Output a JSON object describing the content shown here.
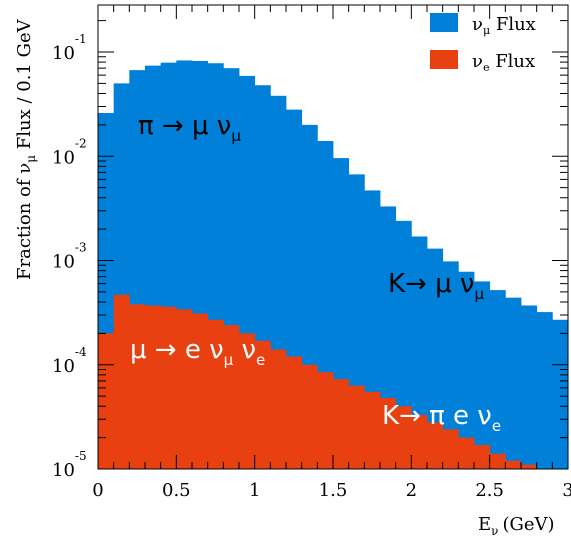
{
  "chart_data": {
    "type": "bar",
    "title": "",
    "xlabel": "E",
    "xlabel_sub": "ν",
    "xlabel_unit": "(GeV)",
    "ylabel_prefix": "Fraction of ν",
    "ylabel_sub": "μ",
    "ylabel_suffix": " Flux / 0.1 GeV",
    "xlim": [
      0,
      3
    ],
    "ylim": [
      1e-05,
      0.2
    ],
    "yscale": "log",
    "grid": false,
    "legend_position": "top-right",
    "x_ticks": [
      "0",
      "0.5",
      "1",
      "1.5",
      "2",
      "2.5",
      "3"
    ],
    "x_tick_values": [
      0,
      0.5,
      1,
      1.5,
      2,
      2.5,
      3
    ],
    "y_ticks": [
      {
        "base": "10",
        "exp": "-1",
        "value": 0.1
      },
      {
        "base": "10",
        "exp": "-2",
        "value": 0.01
      },
      {
        "base": "10",
        "exp": "-3",
        "value": 0.001
      },
      {
        "base": "10",
        "exp": "-4",
        "value": 0.0001
      },
      {
        "base": "10",
        "exp": "-5",
        "value": 1e-05
      }
    ],
    "bin_width": 0.1,
    "bin_lows": [
      0.0,
      0.1,
      0.2,
      0.3,
      0.4,
      0.5,
      0.6,
      0.7,
      0.8,
      0.9,
      1.0,
      1.1,
      1.2,
      1.3,
      1.4,
      1.5,
      1.6,
      1.7,
      1.8,
      1.9,
      2.0,
      2.1,
      2.2,
      2.3,
      2.4,
      2.5,
      2.6,
      2.7,
      2.8,
      2.9
    ],
    "series": [
      {
        "name": "ν_μ Flux",
        "label_main": "ν",
        "label_sub": "μ",
        "label_suffix": " Flux",
        "color": "#0080d8",
        "values": [
          0.026,
          0.05,
          0.067,
          0.074,
          0.079,
          0.083,
          0.082,
          0.078,
          0.07,
          0.059,
          0.048,
          0.038,
          0.028,
          0.02,
          0.014,
          0.0096,
          0.0067,
          0.0047,
          0.0033,
          0.0024,
          0.0017,
          0.0013,
          0.00098,
          0.00078,
          0.00063,
          0.00052,
          0.00044,
          0.00037,
          0.00032,
          0.00027
        ]
      },
      {
        "name": "ν_e Flux",
        "label_main": "ν",
        "label_sub": "e",
        "label_suffix": " Flux",
        "color": "#e84010",
        "values": [
          0.0002,
          0.00047,
          0.00038,
          0.00037,
          0.00036,
          0.00034,
          0.00031,
          0.00027,
          0.00024,
          0.0002,
          0.00017,
          0.00014,
          0.00012,
          0.0001,
          8.5e-05,
          7.3e-05,
          6.3e-05,
          5.5e-05,
          4.8e-05,
          4e-05,
          3.3e-05,
          2.8e-05,
          2.4e-05,
          2e-05,
          1.7e-05,
          1.4e-05,
          1.2e-05,
          1.1e-05,
          1e-05,
          1e-05
        ]
      }
    ],
    "annotations": [
      {
        "id": "pi-mu-nu",
        "main": "π → μ ν",
        "sub": "μ",
        "color": "#000000"
      },
      {
        "id": "k-mu-nu",
        "main": "K→ μ ν",
        "sub": "μ",
        "color": "#000000"
      },
      {
        "id": "mu-e-nu-nu",
        "main": "μ → e ν",
        "sub": "μ",
        "main2": " ν",
        "sub2": "e",
        "color": "#ffffff"
      },
      {
        "id": "k-pi-e-nu",
        "main": "K→ π e ν",
        "sub": "e",
        "color": "#ffffff"
      }
    ]
  }
}
